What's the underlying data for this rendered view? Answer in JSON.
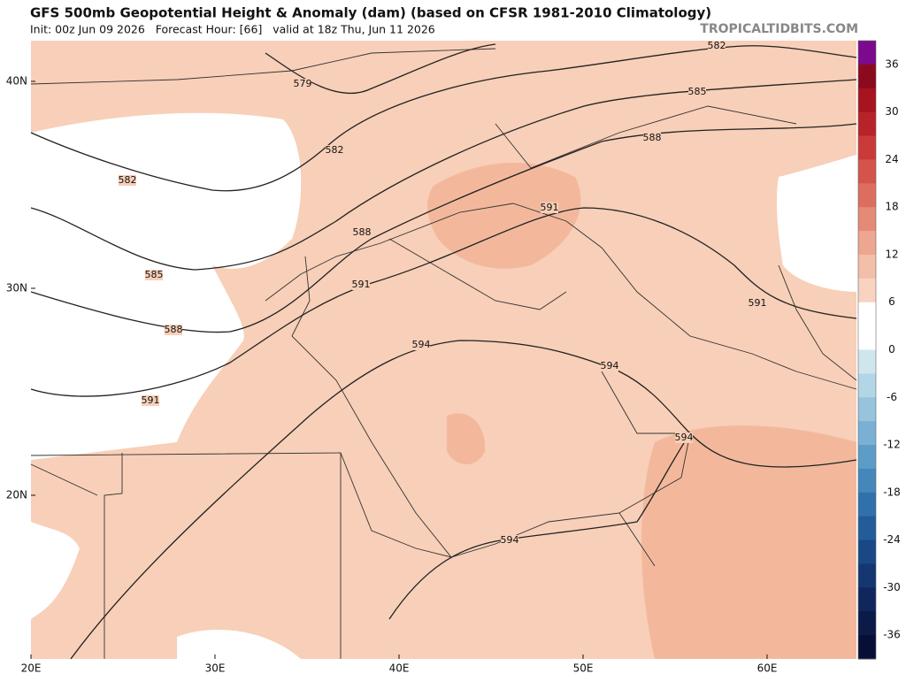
{
  "header": {
    "title": "GFS 500mb Geopotential Height & Anomaly (dam) (based on CFSR 1981-2010 Climatology)",
    "subtitle": "Init: 00z Jun 09 2026   Forecast Hour: [66]   valid at 18z Thu, Jun 11 2026",
    "source": "TROPICALTIDBITS.COM"
  },
  "map": {
    "lon_labels": [
      "20E",
      "30E",
      "40E",
      "50E",
      "60E"
    ],
    "lat_labels": [
      "40N",
      "30N",
      "20N"
    ],
    "contour_labels": [
      "579",
      "582",
      "582",
      "582",
      "585",
      "585",
      "588",
      "588",
      "588",
      "591",
      "591",
      "591",
      "591",
      "594",
      "594",
      "594",
      "594"
    ]
  },
  "colorbar": {
    "labels": [
      "36",
      "30",
      "24",
      "18",
      "12",
      "6",
      "0",
      "-6",
      "-12",
      "-18",
      "-24",
      "-30",
      "-36"
    ]
  }
}
